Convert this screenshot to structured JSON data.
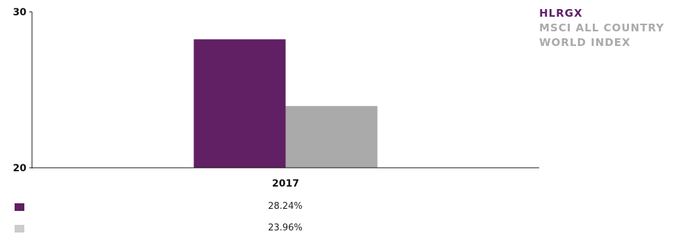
{
  "chart_data": {
    "type": "bar",
    "categories": [
      "2017"
    ],
    "series": [
      {
        "name": "HLRGX",
        "values": [
          28.24
        ],
        "color": "#611f64"
      },
      {
        "name": "MSCI ALL COUNTRY WORLD INDEX",
        "values": [
          23.96
        ],
        "color": "#aaaaaa"
      }
    ],
    "ylim": [
      20,
      30
    ],
    "yticks": [
      20,
      30
    ],
    "title": "",
    "xlabel": "",
    "ylabel": "",
    "grid": false,
    "legend_position": "top-right"
  },
  "legend": {
    "line1": "HLRGX",
    "line2": "MSCI ALL COUNTRY",
    "line3": "WORLD INDEX",
    "color1": "#611f64",
    "color2": "#aaaaaa"
  },
  "table": {
    "rows": [
      {
        "value": "28.24%",
        "color": "#611f64"
      },
      {
        "value": "23.96%",
        "color": "#cccccc"
      }
    ]
  }
}
